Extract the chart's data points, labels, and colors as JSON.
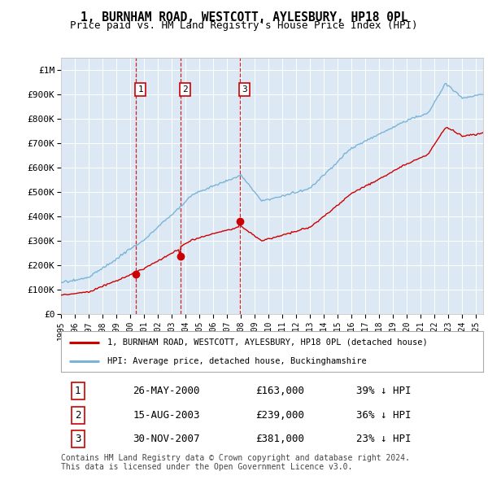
{
  "title": "1, BURNHAM ROAD, WESTCOTT, AYLESBURY, HP18 0PL",
  "subtitle": "Price paid vs. HM Land Registry's House Price Index (HPI)",
  "ylabel_ticks": [
    "£0",
    "£100K",
    "£200K",
    "£300K",
    "£400K",
    "£500K",
    "£600K",
    "£700K",
    "£800K",
    "£900K",
    "£1M"
  ],
  "ytick_values": [
    0,
    100000,
    200000,
    300000,
    400000,
    500000,
    600000,
    700000,
    800000,
    900000,
    1000000
  ],
  "ylim": [
    0,
    1050000
  ],
  "xlim_start": 1995.0,
  "xlim_end": 2025.5,
  "background_color": "#dce9f5",
  "grid_color": "#ffffff",
  "sale_dates": [
    2000.39,
    2003.62,
    2007.92
  ],
  "sale_prices": [
    163000,
    239000,
    381000
  ],
  "sale_labels": [
    "1",
    "2",
    "3"
  ],
  "legend_label_red": "1, BURNHAM ROAD, WESTCOTT, AYLESBURY, HP18 0PL (detached house)",
  "legend_label_blue": "HPI: Average price, detached house, Buckinghamshire",
  "table_rows": [
    [
      "1",
      "26-MAY-2000",
      "£163,000",
      "39% ↓ HPI"
    ],
    [
      "2",
      "15-AUG-2003",
      "£239,000",
      "36% ↓ HPI"
    ],
    [
      "3",
      "30-NOV-2007",
      "£381,000",
      "23% ↓ HPI"
    ]
  ],
  "footnote1": "Contains HM Land Registry data © Crown copyright and database right 2024.",
  "footnote2": "This data is licensed under the Open Government Licence v3.0.",
  "red_color": "#cc0000",
  "blue_color": "#7ab4d8",
  "vline_color": "#cc0000"
}
